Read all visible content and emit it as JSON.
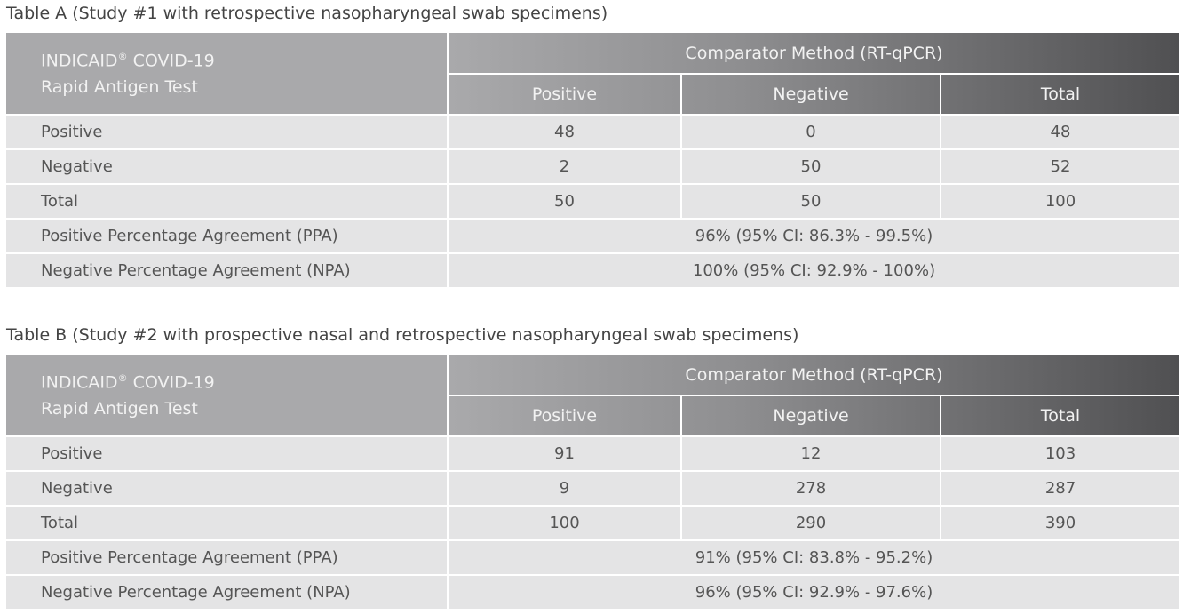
{
  "tables": [
    {
      "caption": "Table A (Study #1 with retrospective nasopharyngeal swab specimens)",
      "corner": {
        "brand": "INDICAID",
        "mark": "®",
        "name": "COVID-19",
        "subtitle": "Rapid Antigen Test"
      },
      "comparator": "Comparator Method (RT-qPCR)",
      "columns": [
        "Positive",
        "Negative",
        "Total"
      ],
      "rows": [
        {
          "label": "Positive",
          "cells": [
            48,
            0,
            48
          ]
        },
        {
          "label": "Negative",
          "cells": [
            2,
            50,
            52
          ]
        },
        {
          "label": "Total",
          "cells": [
            50,
            50,
            100
          ]
        }
      ],
      "agreements": [
        {
          "label": "Positive Percentage Agreement (PPA)",
          "value": "96% (95% CI: 86.3% - 99.5%)"
        },
        {
          "label": "Negative Percentage Agreement (NPA)",
          "value": "100% (95% CI: 92.9% - 100%)"
        }
      ]
    },
    {
      "caption": "Table B (Study #2 with prospective nasal and retrospective nasopharyngeal swab specimens)",
      "corner": {
        "brand": "INDICAID",
        "mark": "®",
        "name": "COVID-19",
        "subtitle": "Rapid Antigen Test"
      },
      "comparator": "Comparator Method (RT-qPCR)",
      "columns": [
        "Positive",
        "Negative",
        "Total"
      ],
      "rows": [
        {
          "label": "Positive",
          "cells": [
            91,
            12,
            103
          ]
        },
        {
          "label": "Negative",
          "cells": [
            9,
            278,
            287
          ]
        },
        {
          "label": "Total",
          "cells": [
            100,
            290,
            390
          ]
        }
      ],
      "agreements": [
        {
          "label": "Positive Percentage Agreement (PPA)",
          "value": "91% (95% CI: 83.8% - 95.2%)"
        },
        {
          "label": "Negative Percentage Agreement (NPA)",
          "value": "96% (95% CI: 92.9% - 97.6%)"
        }
      ]
    }
  ]
}
